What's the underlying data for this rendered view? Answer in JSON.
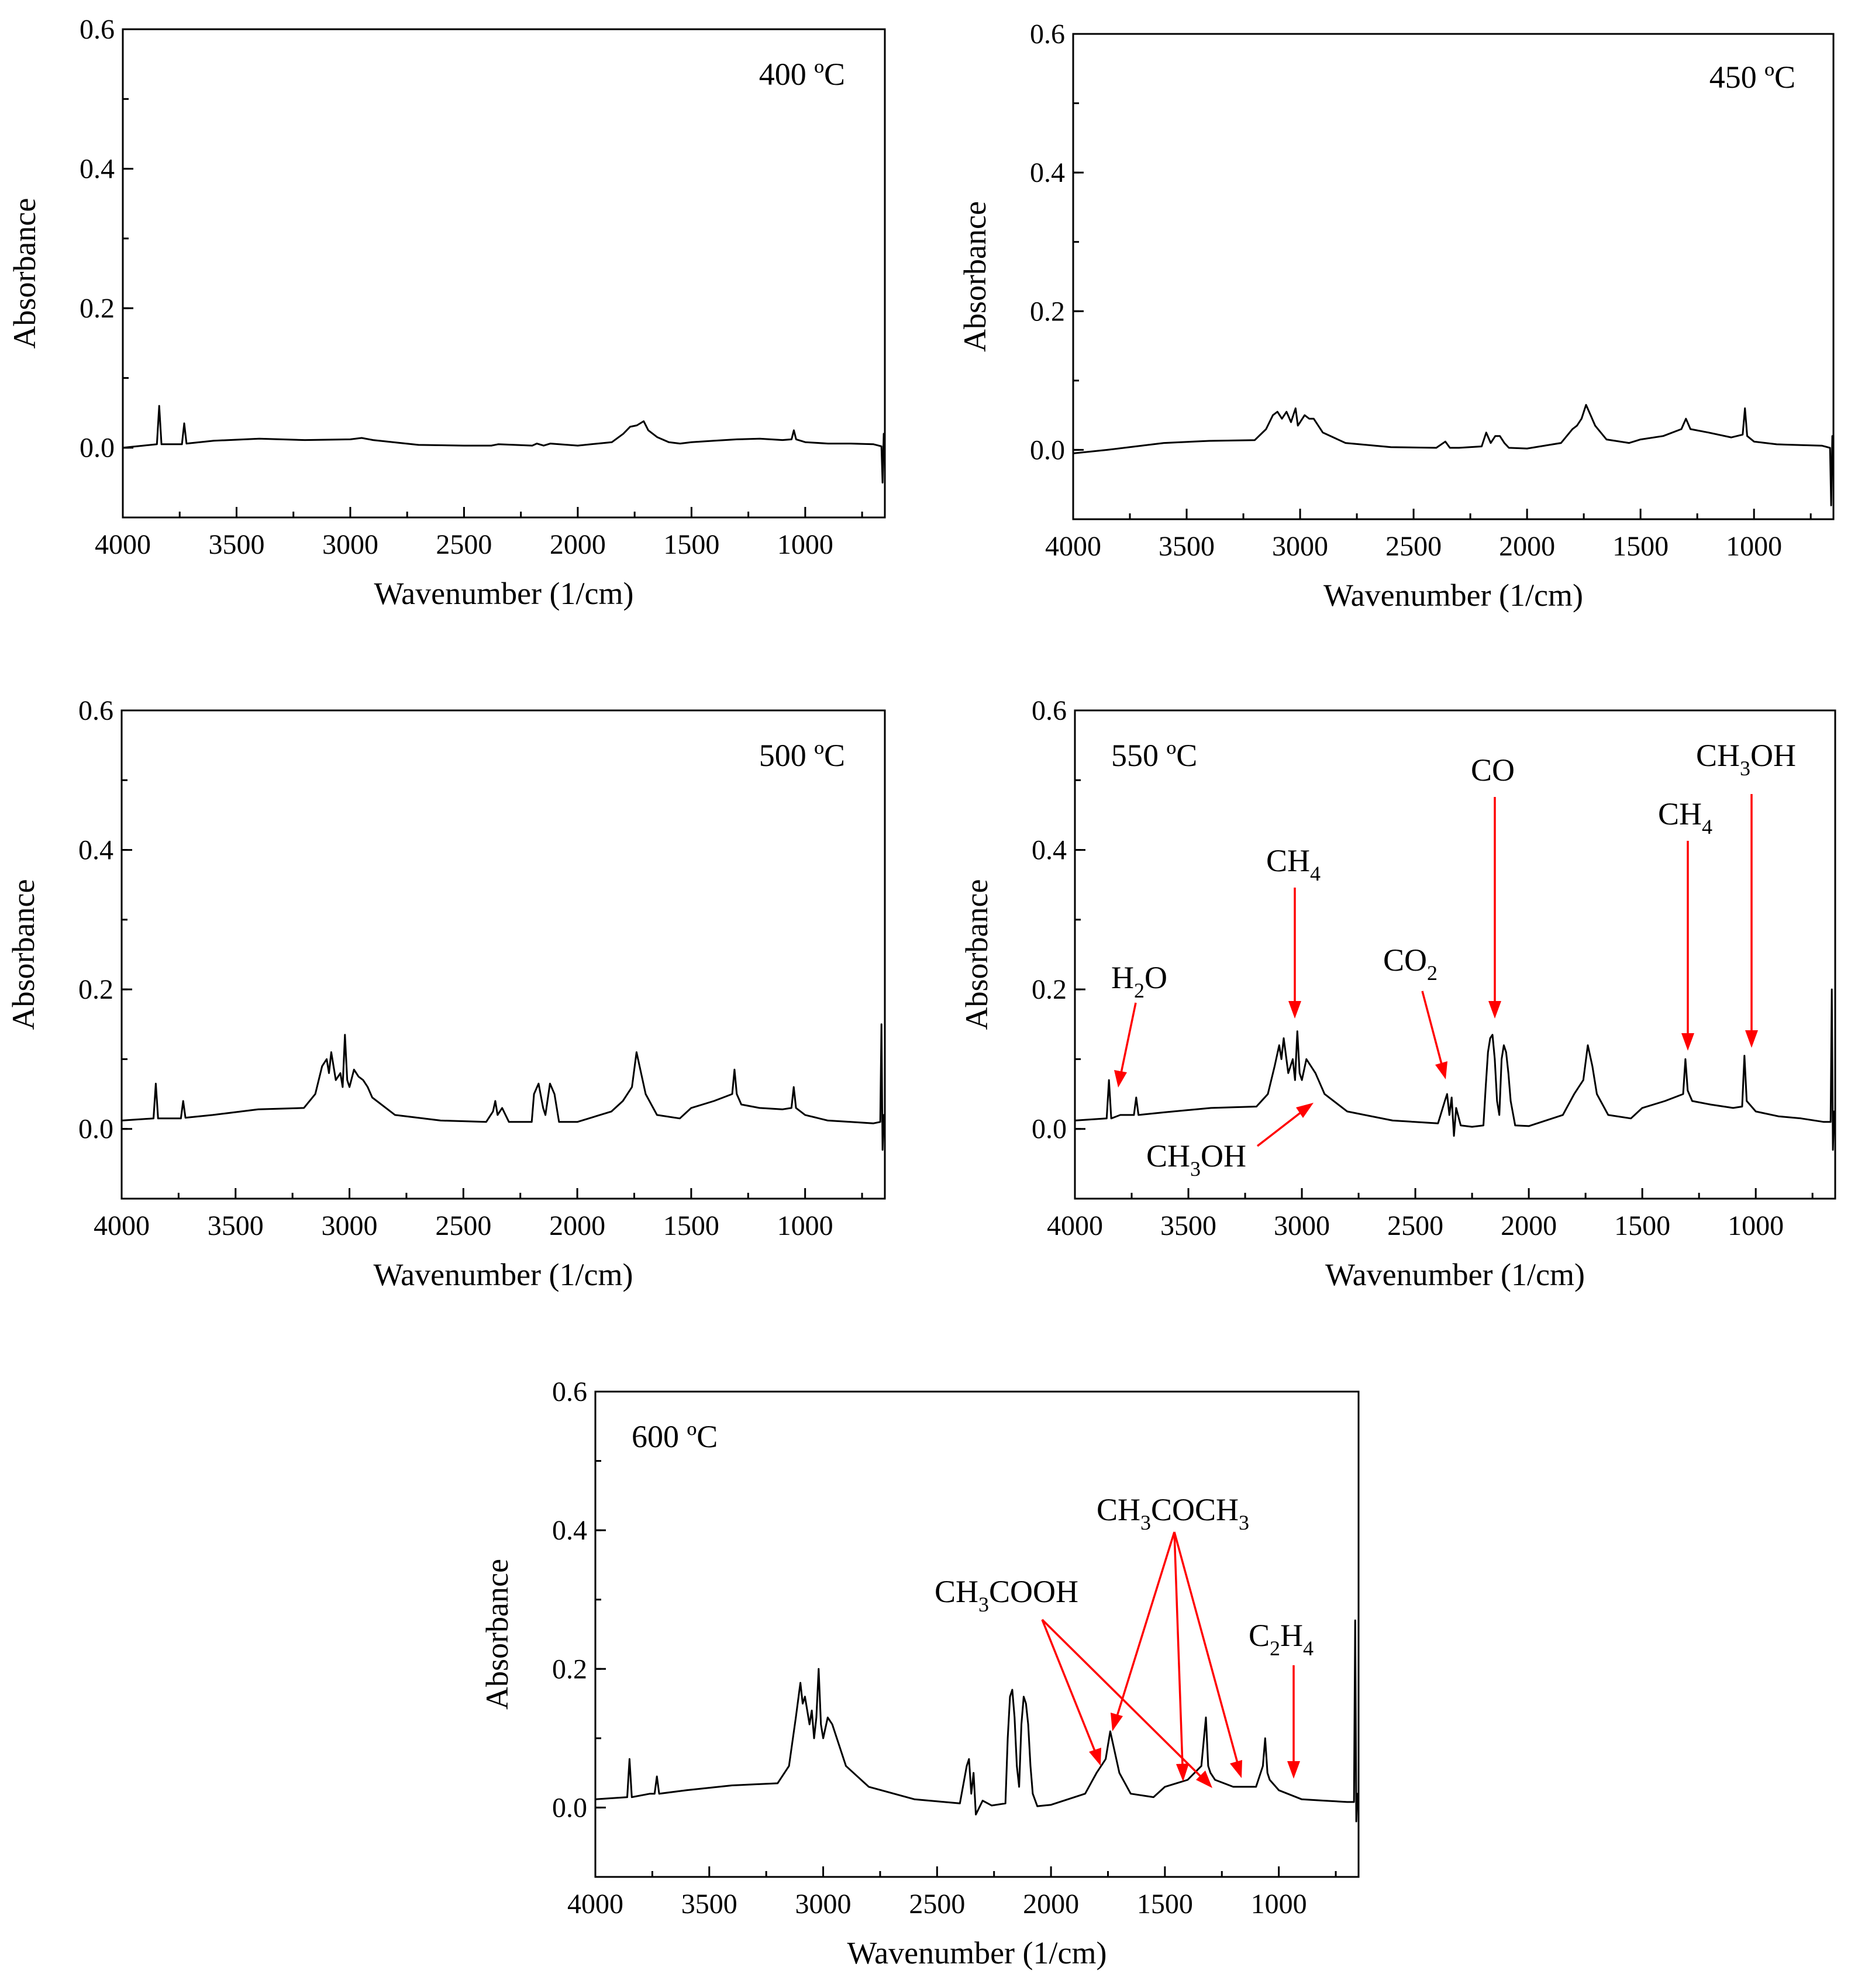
{
  "chart_data": [
    {
      "type": "line",
      "title": "400 ºC",
      "xlabel": "Wavenumber (1/cm)",
      "ylabel": "Absorbance",
      "xlim": [
        4000,
        650
      ],
      "ylim": [
        -0.1,
        0.6
      ],
      "xticks": [
        4000,
        3500,
        3000,
        2500,
        2000,
        1500,
        1000
      ],
      "xtick_labels": [
        "4000",
        "3500",
        "3000",
        "2500",
        "2000",
        "1500",
        "1000"
      ],
      "yticks": [
        0.0,
        0.2,
        0.4,
        0.6
      ],
      "ytick_labels": [
        "0.0",
        "0.2",
        "0.4",
        "0.6"
      ],
      "series": [
        {
          "name": "400 ºC",
          "x": [
            4000,
            3850,
            3840,
            3830,
            3740,
            3730,
            3720,
            3600,
            3400,
            3200,
            3000,
            2950,
            2900,
            2700,
            2500,
            2380,
            2350,
            2200,
            2180,
            2150,
            2120,
            2000,
            1850,
            1800,
            1770,
            1740,
            1710,
            1690,
            1650,
            1600,
            1550,
            1500,
            1450,
            1400,
            1300,
            1200,
            1100,
            1060,
            1050,
            1040,
            1000,
            900,
            800,
            700,
            665,
            660,
            655,
            650
          ],
          "y": [
            0.0,
            0.005,
            0.06,
            0.005,
            0.005,
            0.035,
            0.006,
            0.01,
            0.013,
            0.011,
            0.012,
            0.014,
            0.011,
            0.004,
            0.003,
            0.003,
            0.005,
            0.003,
            0.006,
            0.003,
            0.006,
            0.003,
            0.008,
            0.02,
            0.03,
            0.032,
            0.038,
            0.025,
            0.015,
            0.008,
            0.006,
            0.008,
            0.009,
            0.01,
            0.012,
            0.013,
            0.011,
            0.012,
            0.025,
            0.012,
            0.008,
            0.006,
            0.006,
            0.005,
            0.002,
            -0.05,
            0.02,
            0.0
          ]
        }
      ]
    },
    {
      "type": "line",
      "title": "450 ºC",
      "xlabel": "Wavenumber (1/cm)",
      "ylabel": "Absorbance",
      "xlim": [
        4000,
        650
      ],
      "ylim": [
        -0.1,
        0.6
      ],
      "xticks": [
        4000,
        3500,
        3000,
        2500,
        2000,
        1500,
        1000
      ],
      "xtick_labels": [
        "4000",
        "3500",
        "3000",
        "2500",
        "2000",
        "1500",
        "1000"
      ],
      "yticks": [
        0.0,
        0.2,
        0.4,
        0.6
      ],
      "ytick_labels": [
        "0.0",
        "0.2",
        "0.4",
        "0.6"
      ],
      "series": [
        {
          "name": "450 ºC",
          "x": [
            4000,
            3850,
            3600,
            3400,
            3200,
            3150,
            3120,
            3100,
            3080,
            3060,
            3040,
            3020,
            3010,
            3000,
            2980,
            2960,
            2940,
            2920,
            2900,
            2800,
            2600,
            2400,
            2360,
            2340,
            2300,
            2200,
            2180,
            2160,
            2140,
            2120,
            2100,
            2080,
            2000,
            1850,
            1800,
            1780,
            1760,
            1740,
            1720,
            1700,
            1650,
            1550,
            1500,
            1400,
            1320,
            1300,
            1280,
            1200,
            1100,
            1050,
            1040,
            1030,
            1000,
            900,
            800,
            700,
            665,
            660,
            655,
            650
          ],
          "y": [
            -0.005,
            0.0,
            0.01,
            0.013,
            0.014,
            0.03,
            0.05,
            0.055,
            0.045,
            0.055,
            0.04,
            0.06,
            0.035,
            0.04,
            0.05,
            0.045,
            0.045,
            0.035,
            0.025,
            0.01,
            0.004,
            0.003,
            0.012,
            0.003,
            0.003,
            0.005,
            0.025,
            0.01,
            0.02,
            0.02,
            0.01,
            0.003,
            0.002,
            0.01,
            0.03,
            0.035,
            0.045,
            0.065,
            0.05,
            0.035,
            0.015,
            0.01,
            0.015,
            0.02,
            0.03,
            0.045,
            0.03,
            0.025,
            0.018,
            0.022,
            0.06,
            0.02,
            0.012,
            0.008,
            0.007,
            0.006,
            0.003,
            -0.08,
            0.02,
            0.01
          ]
        }
      ]
    },
    {
      "type": "line",
      "title": "500 ºC",
      "xlabel": "Wavenumber (1/cm)",
      "ylabel": "Absorbance",
      "xlim": [
        4000,
        650
      ],
      "ylim": [
        -0.1,
        0.6
      ],
      "xticks": [
        4000,
        3500,
        3000,
        2500,
        2000,
        1500,
        1000
      ],
      "xtick_labels": [
        "4000",
        "3500",
        "3000",
        "2500",
        "2000",
        "1500",
        "1000"
      ],
      "yticks": [
        0.0,
        0.2,
        0.4,
        0.6
      ],
      "ytick_labels": [
        "0.0",
        "0.2",
        "0.4",
        "0.6"
      ],
      "series": [
        {
          "name": "500 ºC",
          "x": [
            4000,
            3860,
            3850,
            3840,
            3740,
            3730,
            3720,
            3600,
            3400,
            3200,
            3150,
            3120,
            3100,
            3090,
            3080,
            3060,
            3040,
            3030,
            3020,
            3010,
            3000,
            2980,
            2960,
            2940,
            2920,
            2900,
            2800,
            2600,
            2400,
            2370,
            2360,
            2350,
            2330,
            2300,
            2200,
            2190,
            2170,
            2150,
            2140,
            2120,
            2100,
            2080,
            2000,
            1850,
            1800,
            1780,
            1760,
            1740,
            1720,
            1700,
            1650,
            1550,
            1500,
            1400,
            1320,
            1310,
            1300,
            1280,
            1200,
            1100,
            1060,
            1050,
            1040,
            1000,
            900,
            800,
            700,
            670,
            665,
            660,
            655,
            650
          ],
          "y": [
            0.012,
            0.015,
            0.065,
            0.015,
            0.015,
            0.04,
            0.016,
            0.02,
            0.028,
            0.03,
            0.05,
            0.09,
            0.1,
            0.08,
            0.11,
            0.07,
            0.08,
            0.06,
            0.135,
            0.07,
            0.06,
            0.085,
            0.075,
            0.07,
            0.06,
            0.045,
            0.02,
            0.012,
            0.01,
            0.025,
            0.04,
            0.02,
            0.03,
            0.01,
            0.01,
            0.05,
            0.065,
            0.03,
            0.02,
            0.065,
            0.05,
            0.01,
            0.01,
            0.025,
            0.04,
            0.05,
            0.06,
            0.11,
            0.08,
            0.05,
            0.02,
            0.015,
            0.03,
            0.04,
            0.05,
            0.085,
            0.05,
            0.035,
            0.03,
            0.028,
            0.03,
            0.06,
            0.03,
            0.02,
            0.012,
            0.01,
            0.008,
            0.01,
            0.15,
            -0.03,
            0.02,
            0.01
          ]
        }
      ]
    },
    {
      "type": "line",
      "title": "550 ºC",
      "xlabel": "Wavenumber (1/cm)",
      "ylabel": "Absorbance",
      "xlim": [
        4000,
        650
      ],
      "ylim": [
        -0.1,
        0.6
      ],
      "xticks": [
        4000,
        3500,
        3000,
        2500,
        2000,
        1500,
        1000
      ],
      "xtick_labels": [
        "4000",
        "3500",
        "3000",
        "2500",
        "2000",
        "1500",
        "1000"
      ],
      "yticks": [
        0.0,
        0.2,
        0.4,
        0.6
      ],
      "ytick_labels": [
        "0.0",
        "0.2",
        "0.4",
        "0.6"
      ],
      "annotations": [
        "H2O",
        "CH4",
        "CO2",
        "CO",
        "CH4",
        "CH3OH",
        "CH3OH"
      ],
      "series": [
        {
          "name": "550 ºC",
          "x": [
            4000,
            3860,
            3850,
            3840,
            3800,
            3760,
            3740,
            3730,
            3720,
            3600,
            3400,
            3200,
            3150,
            3120,
            3100,
            3090,
            3080,
            3060,
            3040,
            3030,
            3020,
            3010,
            3000,
            2980,
            2960,
            2940,
            2920,
            2900,
            2800,
            2600,
            2400,
            2370,
            2360,
            2350,
            2340,
            2330,
            2320,
            2300,
            2250,
            2200,
            2190,
            2180,
            2170,
            2160,
            2150,
            2140,
            2130,
            2120,
            2110,
            2100,
            2090,
            2080,
            2060,
            2000,
            1850,
            1800,
            1780,
            1760,
            1740,
            1720,
            1700,
            1650,
            1550,
            1500,
            1400,
            1320,
            1310,
            1300,
            1280,
            1200,
            1100,
            1060,
            1050,
            1040,
            1000,
            900,
            800,
            700,
            670,
            665,
            660,
            655,
            650
          ],
          "y": [
            0.012,
            0.015,
            0.07,
            0.015,
            0.02,
            0.02,
            0.02,
            0.045,
            0.02,
            0.024,
            0.03,
            0.032,
            0.05,
            0.09,
            0.12,
            0.1,
            0.13,
            0.08,
            0.1,
            0.07,
            0.14,
            0.08,
            0.07,
            0.1,
            0.09,
            0.08,
            0.065,
            0.05,
            0.025,
            0.012,
            0.008,
            0.04,
            0.05,
            0.02,
            0.045,
            -0.01,
            0.03,
            0.005,
            0.003,
            0.005,
            0.06,
            0.11,
            0.13,
            0.135,
            0.1,
            0.04,
            0.02,
            0.1,
            0.12,
            0.11,
            0.08,
            0.04,
            0.005,
            0.004,
            0.02,
            0.05,
            0.06,
            0.07,
            0.12,
            0.09,
            0.05,
            0.02,
            0.015,
            0.03,
            0.04,
            0.05,
            0.1,
            0.055,
            0.04,
            0.035,
            0.03,
            0.032,
            0.105,
            0.04,
            0.025,
            0.018,
            0.015,
            0.01,
            0.01,
            0.2,
            -0.03,
            0.025,
            0.01
          ]
        }
      ]
    },
    {
      "type": "line",
      "title": "600 ºC",
      "xlabel": "Wavenumber (1/cm)",
      "ylabel": "Absorbance",
      "xlim": [
        4000,
        650
      ],
      "ylim": [
        -0.1,
        0.6
      ],
      "xticks": [
        4000,
        3500,
        3000,
        2500,
        2000,
        1500,
        1000
      ],
      "xtick_labels": [
        "4000",
        "3500",
        "3000",
        "2500",
        "2000",
        "1500",
        "1000"
      ],
      "yticks": [
        0.0,
        0.2,
        0.4,
        0.6
      ],
      "ytick_labels": [
        "0.0",
        "0.2",
        "0.4",
        "0.6"
      ],
      "annotations": [
        "CH3COOH",
        "CH3COCH3",
        "C2H4"
      ],
      "series": [
        {
          "name": "600 ºC",
          "x": [
            4000,
            3860,
            3850,
            3840,
            3760,
            3740,
            3730,
            3720,
            3600,
            3400,
            3200,
            3150,
            3120,
            3100,
            3090,
            3080,
            3060,
            3050,
            3040,
            3030,
            3020,
            3010,
            3000,
            2980,
            2960,
            2950,
            2940,
            2920,
            2900,
            2800,
            2600,
            2400,
            2370,
            2360,
            2350,
            2340,
            2330,
            2300,
            2260,
            2200,
            2190,
            2180,
            2170,
            2160,
            2150,
            2140,
            2130,
            2120,
            2110,
            2100,
            2090,
            2080,
            2060,
            2000,
            1850,
            1800,
            1780,
            1760,
            1740,
            1720,
            1700,
            1650,
            1550,
            1500,
            1400,
            1340,
            1320,
            1310,
            1300,
            1280,
            1200,
            1100,
            1070,
            1060,
            1050,
            1040,
            1000,
            900,
            800,
            700,
            670,
            665,
            660,
            655,
            650
          ],
          "y": [
            0.012,
            0.015,
            0.07,
            0.015,
            0.02,
            0.02,
            0.045,
            0.02,
            0.025,
            0.032,
            0.035,
            0.06,
            0.13,
            0.18,
            0.15,
            0.16,
            0.12,
            0.14,
            0.1,
            0.13,
            0.2,
            0.12,
            0.1,
            0.13,
            0.12,
            0.11,
            0.1,
            0.08,
            0.06,
            0.03,
            0.012,
            0.006,
            0.06,
            0.07,
            0.02,
            0.05,
            -0.01,
            0.01,
            0.003,
            0.006,
            0.1,
            0.16,
            0.17,
            0.13,
            0.06,
            0.03,
            0.12,
            0.16,
            0.15,
            0.12,
            0.06,
            0.02,
            0.002,
            0.004,
            0.02,
            0.05,
            0.06,
            0.07,
            0.11,
            0.08,
            0.05,
            0.02,
            0.015,
            0.03,
            0.04,
            0.06,
            0.13,
            0.06,
            0.05,
            0.04,
            0.03,
            0.03,
            0.06,
            0.1,
            0.05,
            0.04,
            0.025,
            0.012,
            0.01,
            0.008,
            0.008,
            0.27,
            -0.02,
            0.02,
            0.01
          ]
        }
      ]
    }
  ],
  "annotations": {
    "h2o": {
      "main": "H",
      "sub": "2",
      "tail": "O"
    },
    "ch4_a": {
      "main": "CH",
      "sub": "4"
    },
    "co2": {
      "main": "CO",
      "sub": "2"
    },
    "co": {
      "main": "CO"
    },
    "ch4_b": {
      "main": "CH",
      "sub": "4"
    },
    "ch3oh_a": {
      "main": "CH",
      "sub": "3",
      "tail": "OH"
    },
    "ch3oh_b": {
      "main": "CH",
      "sub": "3",
      "tail": "OH"
    },
    "ch3cooh": {
      "main": "CH",
      "sub": "3",
      "tail": "COOH"
    },
    "ch3coch3": {
      "main": "CH",
      "sub": "3",
      "mid": "COCH",
      "sub2": "3"
    },
    "c2h4": {
      "main": "C",
      "sub": "2",
      "mid": "H",
      "sub2": "4"
    }
  },
  "arrow_color": "#ff0000"
}
